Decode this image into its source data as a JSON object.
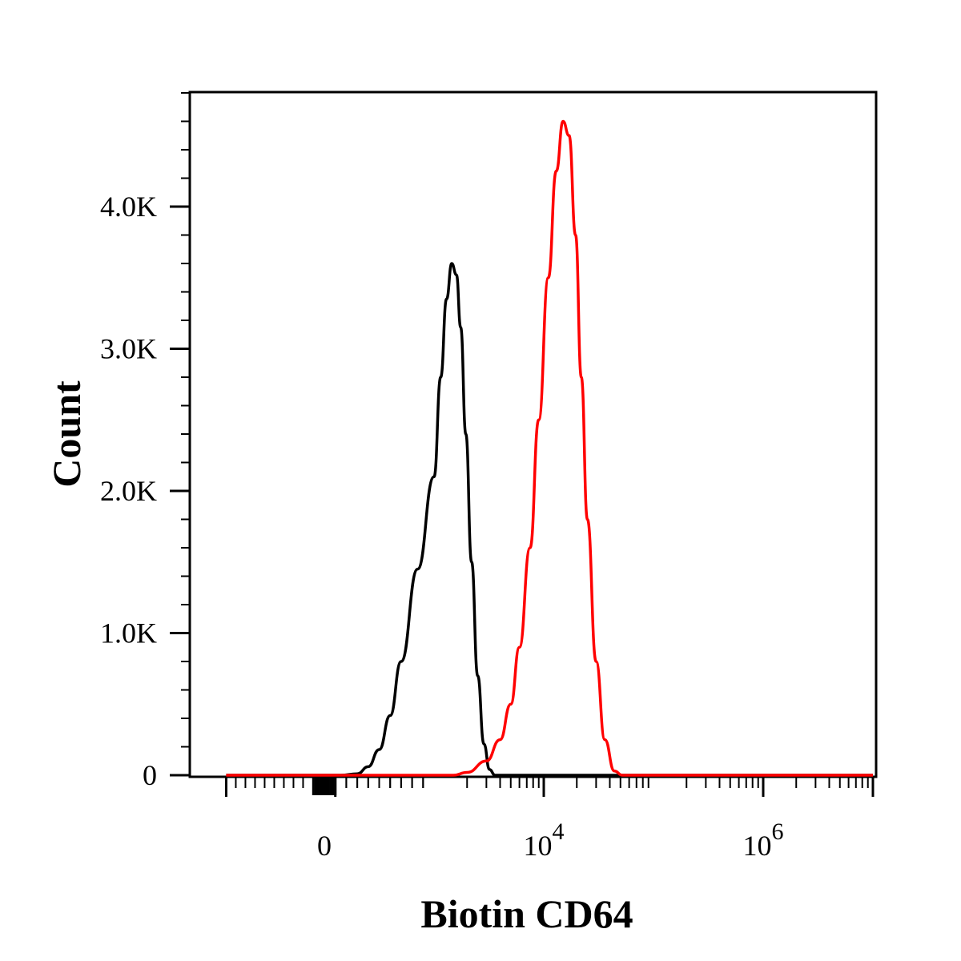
{
  "chart_data": {
    "type": "line",
    "title": "",
    "xlabel": "Biotin CD64",
    "ylabel": "Count",
    "x_scale": "biexponential",
    "xlim": [
      -1000,
      10000000
    ],
    "ylim": [
      0,
      4800
    ],
    "x_tick_labels": [
      {
        "base": "0",
        "exp": ""
      },
      {
        "base": "10",
        "exp": "4"
      },
      {
        "base": "10",
        "exp": "6"
      }
    ],
    "y_ticks": [
      {
        "value": 0,
        "label": "0"
      },
      {
        "value": 1000,
        "label": "1.0K"
      },
      {
        "value": 2000,
        "label": "2.0K"
      },
      {
        "value": 3000,
        "label": "3.0K"
      },
      {
        "value": 4000,
        "label": "4.0K"
      }
    ],
    "series": [
      {
        "color": "#000000",
        "points": [
          [
            -1000,
            0
          ],
          [
            150,
            0
          ],
          [
            300,
            10
          ],
          [
            400,
            60
          ],
          [
            500,
            180
          ],
          [
            600,
            420
          ],
          [
            700,
            800
          ],
          [
            850,
            1450
          ],
          [
            1000,
            2100
          ],
          [
            1150,
            2800
          ],
          [
            1300,
            3350
          ],
          [
            1450,
            3600
          ],
          [
            1600,
            3520
          ],
          [
            1750,
            3150
          ],
          [
            1950,
            2400
          ],
          [
            2200,
            1500
          ],
          [
            2500,
            700
          ],
          [
            2850,
            220
          ],
          [
            3200,
            40
          ],
          [
            3600,
            0
          ],
          [
            10000000,
            0
          ]
        ]
      },
      {
        "color": "#ff0000",
        "points": [
          [
            -1000,
            0
          ],
          [
            1500,
            0
          ],
          [
            2000,
            20
          ],
          [
            3000,
            100
          ],
          [
            4000,
            250
          ],
          [
            5000,
            500
          ],
          [
            6000,
            900
          ],
          [
            7500,
            1600
          ],
          [
            9000,
            2500
          ],
          [
            11000,
            3500
          ],
          [
            13000,
            4250
          ],
          [
            15000,
            4600
          ],
          [
            17000,
            4500
          ],
          [
            19500,
            3800
          ],
          [
            22000,
            2800
          ],
          [
            25000,
            1800
          ],
          [
            30000,
            800
          ],
          [
            36000,
            250
          ],
          [
            44000,
            30
          ],
          [
            52000,
            0
          ],
          [
            10000000,
            0
          ]
        ]
      }
    ]
  }
}
